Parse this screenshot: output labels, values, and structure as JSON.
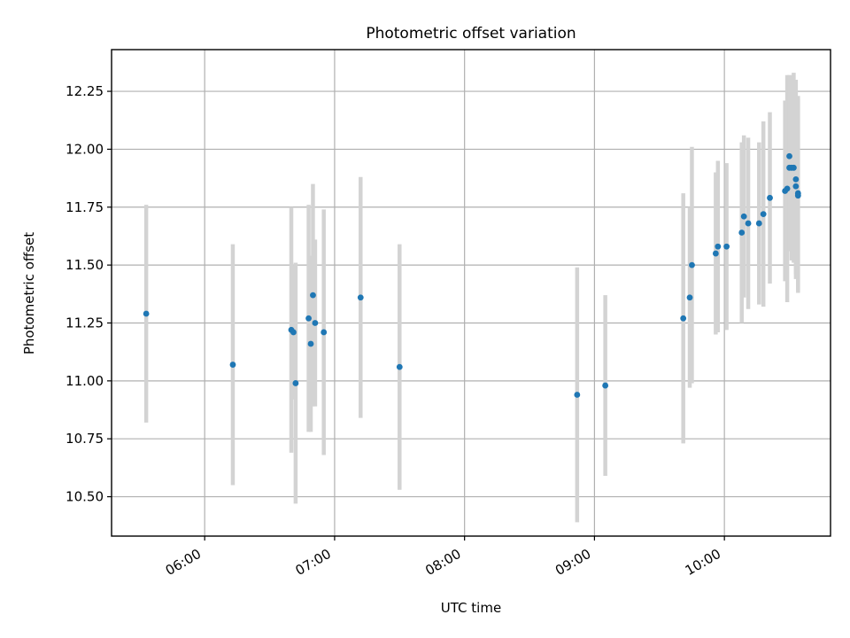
{
  "chart_data": {
    "type": "scatter",
    "title": "Photometric offset variation",
    "xlabel": "UTC time",
    "ylabel": "Photometric offset",
    "x_ticks": [
      "06:00",
      "07:00",
      "08:00",
      "09:00",
      "10:00"
    ],
    "y_ticks": [
      "10.50",
      "10.75",
      "11.00",
      "11.25",
      "11.50",
      "11.75",
      "12.00",
      "12.25"
    ],
    "xlim": [
      "05:17",
      "10:49"
    ],
    "ylim": [
      10.33,
      12.43
    ],
    "grid": true,
    "colors": {
      "point": "#1f77b4",
      "errorbar": "#d3d3d3"
    },
    "points": [
      {
        "t": "05:33",
        "y": 11.29,
        "err": 0.47
      },
      {
        "t": "06:13",
        "y": 11.07,
        "err": 0.52
      },
      {
        "t": "06:40",
        "y": 11.22,
        "err": 0.53
      },
      {
        "t": "06:41",
        "y": 11.21,
        "err": 0.29
      },
      {
        "t": "06:42",
        "y": 10.99,
        "err": 0.52
      },
      {
        "t": "06:48",
        "y": 11.27,
        "err": 0.49
      },
      {
        "t": "06:49",
        "y": 11.16,
        "err": 0.38
      },
      {
        "t": "06:50",
        "y": 11.37,
        "err": 0.48
      },
      {
        "t": "06:51",
        "y": 11.25,
        "err": 0.36
      },
      {
        "t": "06:55",
        "y": 11.21,
        "err": 0.53
      },
      {
        "t": "07:12",
        "y": 11.36,
        "err": 0.52
      },
      {
        "t": "07:30",
        "y": 11.06,
        "err": 0.53
      },
      {
        "t": "08:52",
        "y": 10.94,
        "err": 0.55
      },
      {
        "t": "09:05",
        "y": 10.98,
        "err": 0.39
      },
      {
        "t": "09:41",
        "y": 11.27,
        "err": 0.54
      },
      {
        "t": "09:44",
        "y": 11.36,
        "err": 0.39
      },
      {
        "t": "09:45",
        "y": 11.5,
        "err": 0.51
      },
      {
        "t": "09:56",
        "y": 11.55,
        "err": 0.35
      },
      {
        "t": "09:57",
        "y": 11.58,
        "err": 0.37
      },
      {
        "t": "10:01",
        "y": 11.58,
        "err": 0.36
      },
      {
        "t": "10:08",
        "y": 11.64,
        "err": 0.39
      },
      {
        "t": "10:09",
        "y": 11.71,
        "err": 0.35
      },
      {
        "t": "10:11",
        "y": 11.68,
        "err": 0.37
      },
      {
        "t": "10:16",
        "y": 11.68,
        "err": 0.35
      },
      {
        "t": "10:18",
        "y": 11.72,
        "err": 0.4
      },
      {
        "t": "10:21",
        "y": 11.79,
        "err": 0.37
      },
      {
        "t": "10:28",
        "y": 11.82,
        "err": 0.39
      },
      {
        "t": "10:29",
        "y": 11.83,
        "err": 0.49
      },
      {
        "t": "10:30",
        "y": 11.97,
        "err": 0.35
      },
      {
        "t": "10:30",
        "y": 11.92,
        "err": 0.36
      },
      {
        "t": "10:31",
        "y": 11.92,
        "err": 0.4
      },
      {
        "t": "10:32",
        "y": 11.92,
        "err": 0.41
      },
      {
        "t": "10:33",
        "y": 11.87,
        "err": 0.43
      },
      {
        "t": "10:33",
        "y": 11.84,
        "err": 0.38
      },
      {
        "t": "10:34",
        "y": 11.81,
        "err": 0.42
      },
      {
        "t": "10:34",
        "y": 11.8,
        "err": 0.42
      }
    ]
  }
}
